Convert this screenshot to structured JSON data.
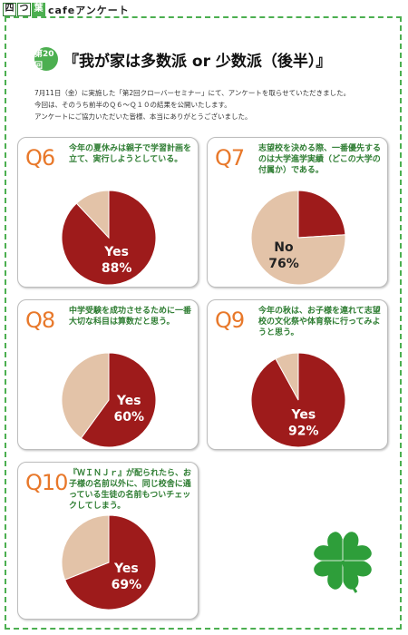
{
  "header": {
    "logo_chars": [
      "四",
      "つ",
      "葉"
    ],
    "logo_rest": "cafeアンケート"
  },
  "badge": "第20回",
  "title": "『我が家は多数派 or 少数派（後半）』",
  "intro": [
    "7月11日（金）に実施した「第2回クローバーセミナー」にて、アンケートを取らせていただきました。",
    "今回は、そのうち前半のＱ６～Ｑ１０の結果を公開いたします。",
    "アンケートにご協力いただいた皆様、本当にありがとうございました。"
  ],
  "colors": {
    "primary": "#9e1b1b",
    "secondary": "#e3c3a8",
    "accent": "#e8782a",
    "green": "#2e7d32"
  },
  "chart_data": [
    {
      "type": "pie",
      "id": "Q6",
      "question": "今年の夏休みは親子で学習計画を立て、実行しようとしている。",
      "slices": [
        {
          "label": "Yes",
          "value": 88
        },
        {
          "label": "",
          "value": 12
        }
      ],
      "highlight": "Yes",
      "highlight_text": "88%"
    },
    {
      "type": "pie",
      "id": "Q7",
      "question": "志望校を決める際、一番優先するのは大学進学実績（どこの大学の付属か）である。",
      "slices": [
        {
          "label": "",
          "value": 24
        },
        {
          "label": "No",
          "value": 76
        }
      ],
      "highlight": "No",
      "highlight_text": "76%"
    },
    {
      "type": "pie",
      "id": "Q8",
      "question": "中学受験を成功させるために一番大切な科目は算数だと思う。",
      "slices": [
        {
          "label": "Yes",
          "value": 60
        },
        {
          "label": "",
          "value": 40
        }
      ],
      "highlight": "Yes",
      "highlight_text": "60%"
    },
    {
      "type": "pie",
      "id": "Q9",
      "question": "今年の秋は、お子様を連れて志望校の文化祭や体育祭に行ってみようと思う。",
      "slices": [
        {
          "label": "Yes",
          "value": 92
        },
        {
          "label": "",
          "value": 8
        }
      ],
      "highlight": "Yes",
      "highlight_text": "92%"
    },
    {
      "type": "pie",
      "id": "Q10",
      "question": "『ＷＩＮＪｒ』が配られたら、お子様の名前以外に、同じ校舎に通っている生徒の名前もついチェックしてしまう。",
      "slices": [
        {
          "label": "Yes",
          "value": 69
        },
        {
          "label": "",
          "value": 31
        }
      ],
      "highlight": "Yes",
      "highlight_text": "69%"
    }
  ]
}
